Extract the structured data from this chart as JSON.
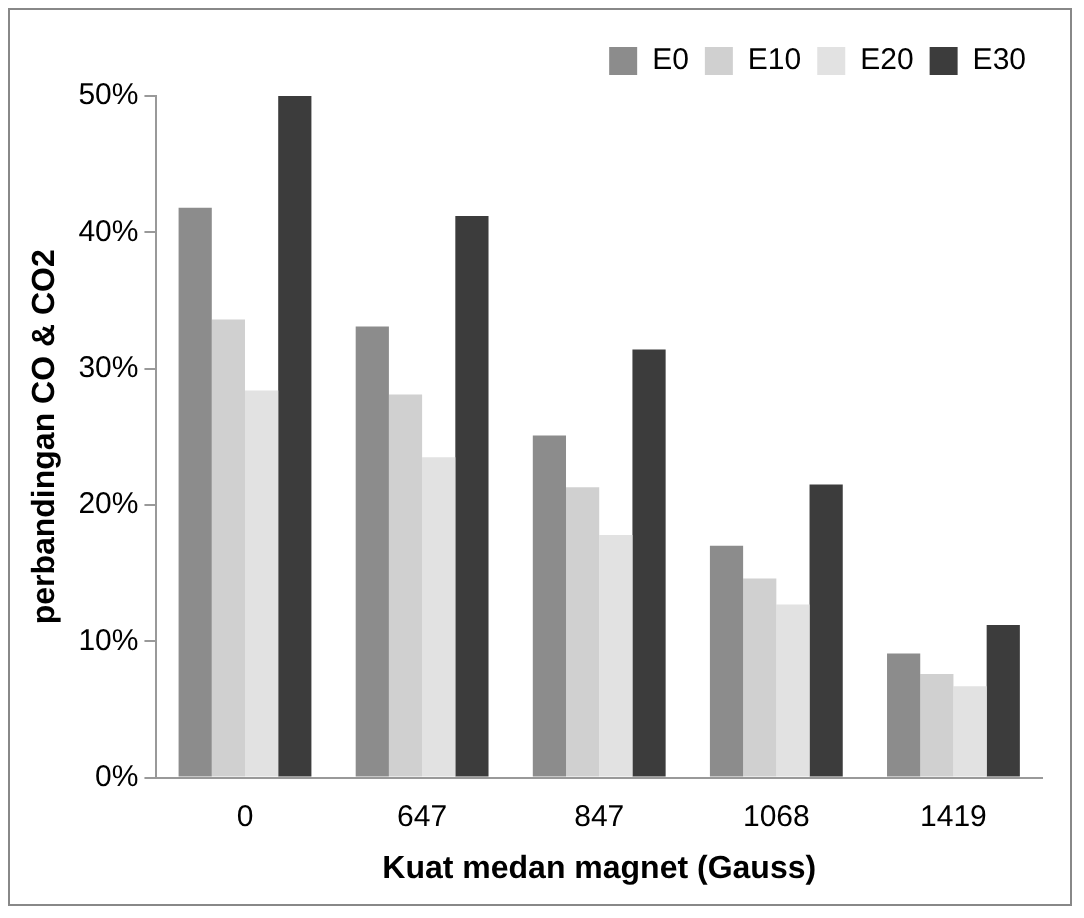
{
  "chart_data": {
    "type": "bar",
    "xlabel": "Kuat medan magnet (Gauss)",
    "ylabel": "perbandingan CO & CO2",
    "categories": [
      "0",
      "647",
      "847",
      "1068",
      "1419"
    ],
    "series": [
      {
        "name": "E0",
        "color": "#8c8c8c",
        "values": [
          41.8,
          33.1,
          25.1,
          17.0,
          9.1
        ]
      },
      {
        "name": "E10",
        "color": "#d0d0d0",
        "values": [
          33.6,
          28.1,
          21.3,
          14.6,
          7.6
        ]
      },
      {
        "name": "E20",
        "color": "#e2e2e2",
        "values": [
          28.4,
          23.5,
          17.8,
          12.7,
          6.7
        ]
      },
      {
        "name": "E30",
        "color": "#3c3c3c",
        "values": [
          50.0,
          41.2,
          31.4,
          21.5,
          11.2
        ]
      }
    ],
    "ylim": [
      0,
      50
    ],
    "yticks": [
      {
        "value": 0,
        "label": "0%"
      },
      {
        "value": 10,
        "label": "10%"
      },
      {
        "value": 20,
        "label": "20%"
      },
      {
        "value": 30,
        "label": "30%"
      },
      {
        "value": 40,
        "label": "40%"
      },
      {
        "value": 50,
        "label": "50%"
      }
    ],
    "grid": false,
    "legend": "top right"
  }
}
